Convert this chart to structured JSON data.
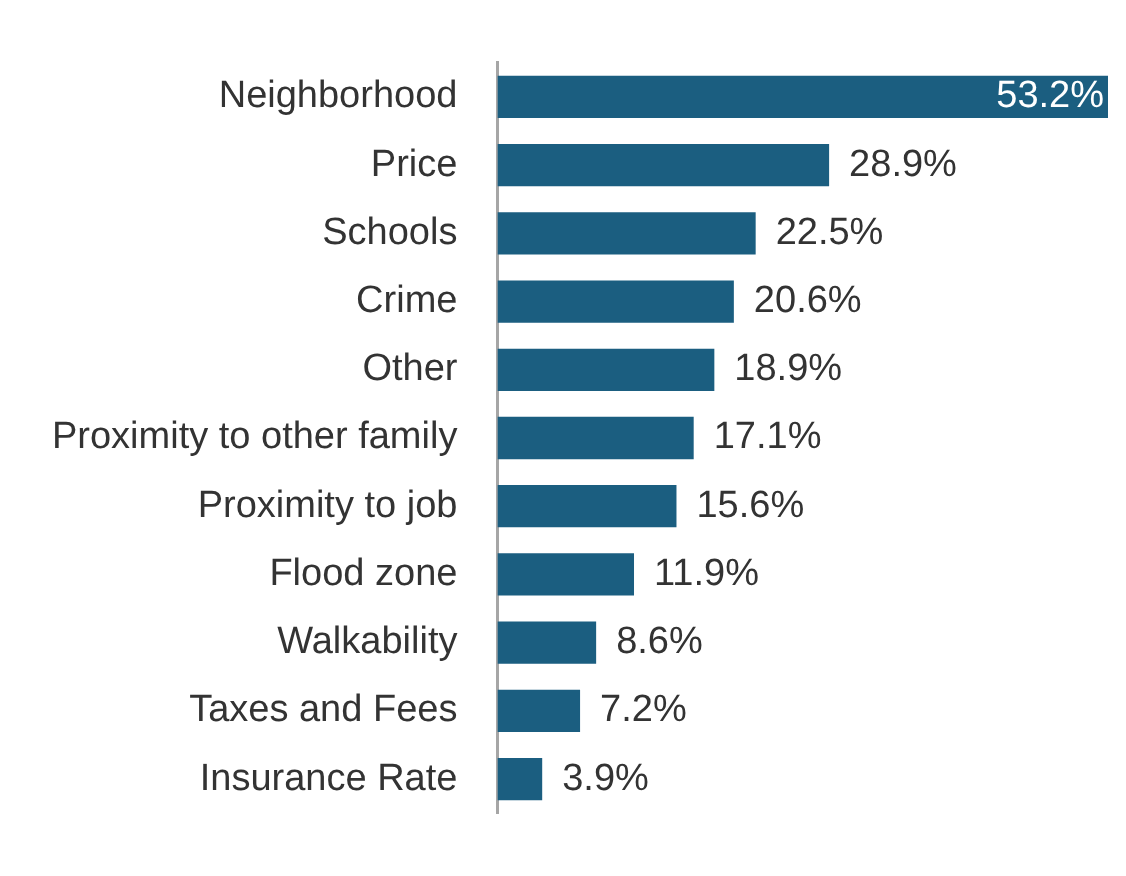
{
  "chart_data": {
    "type": "bar",
    "orientation": "horizontal",
    "categories": [
      "Neighborhood",
      "Price",
      "Schools",
      "Crime",
      "Other",
      "Proximity to other family",
      "Proximity to job",
      "Flood zone",
      "Walkability",
      "Taxes and Fees",
      "Insurance Rate"
    ],
    "values": [
      53.2,
      28.9,
      22.5,
      20.6,
      18.9,
      17.1,
      15.6,
      11.9,
      8.6,
      7.2,
      3.9
    ],
    "value_labels": [
      "53.2%",
      "28.9%",
      "22.5%",
      "20.6%",
      "18.9%",
      "17.1%",
      "15.6%",
      "11.9%",
      "8.6%",
      "7.2%",
      "3.9%"
    ],
    "color": "#1b5e80",
    "grid": false,
    "legend": false
  }
}
